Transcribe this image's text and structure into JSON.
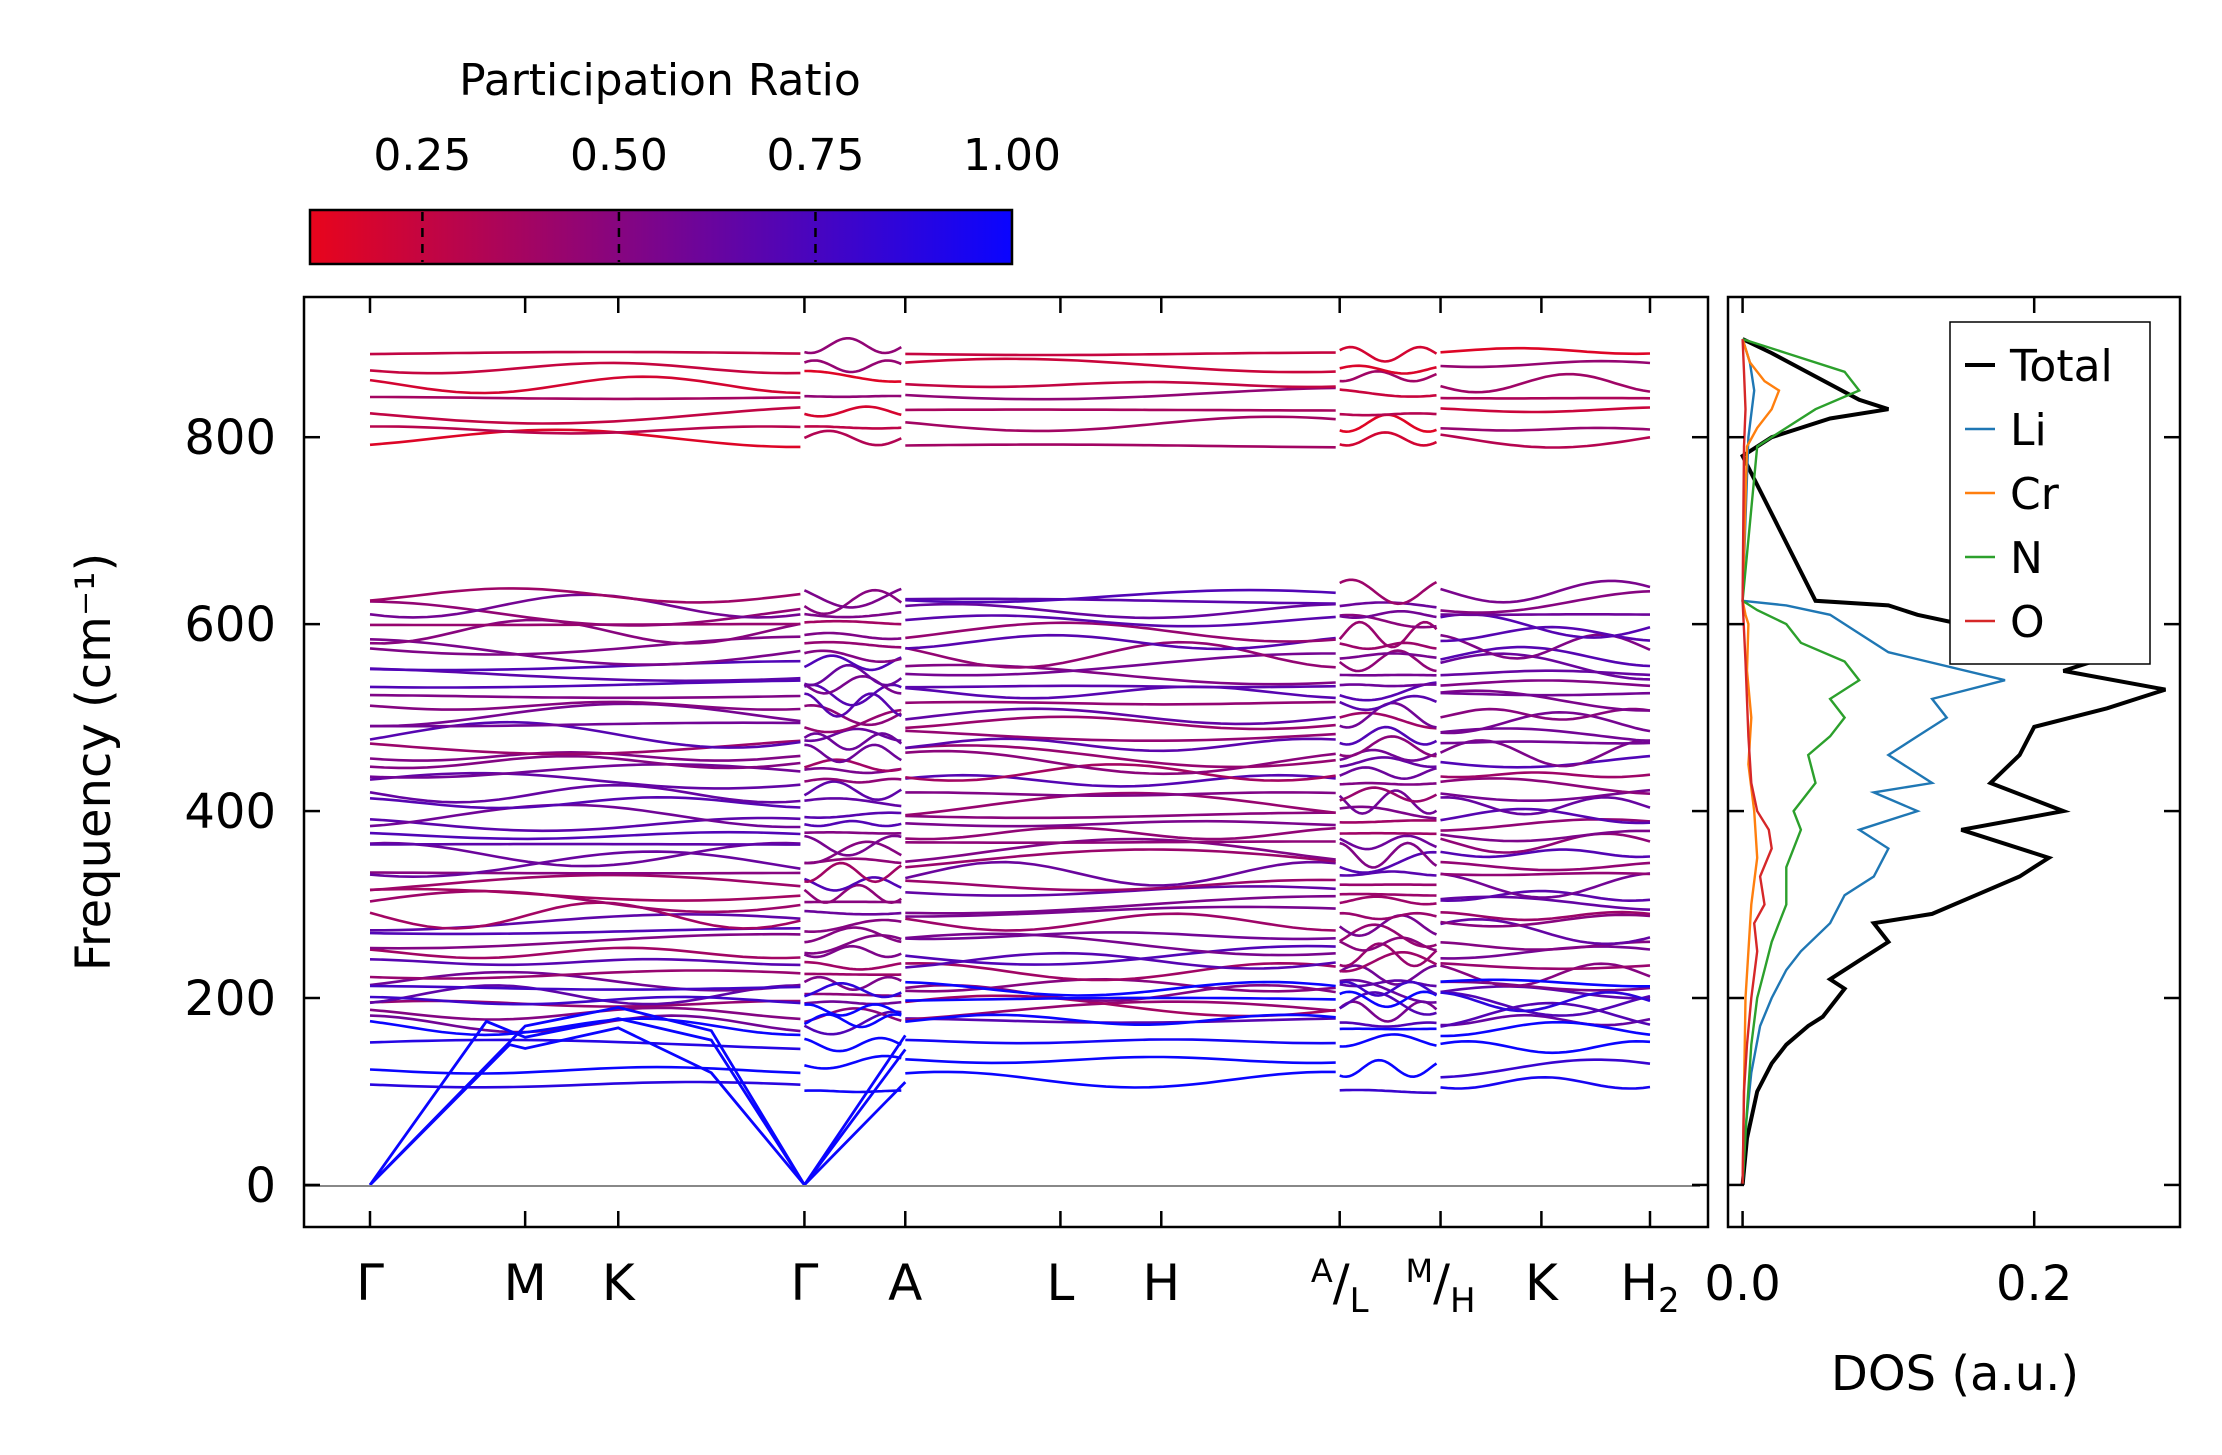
{
  "colors": {
    "colormap_low": "#e8051c",
    "colormap_high": "#0a05ff",
    "total": "#000000",
    "li": "#1f77b4",
    "cr": "#ff7f0e",
    "n": "#2ca02c",
    "o": "#d62728",
    "zero_line": "#888888"
  },
  "chart_data": [
    {
      "type": "line",
      "name": "phonon-band-structure",
      "title": "",
      "ylabel": "Frequency (cm⁻¹)",
      "ylim": [
        -45,
        950
      ],
      "yticks": [
        0,
        200,
        400,
        600,
        800
      ],
      "kpath_labels": [
        {
          "text": "Γ",
          "sup": "",
          "sub": ""
        },
        {
          "text": "M",
          "sup": "",
          "sub": ""
        },
        {
          "text": "K",
          "sup": "",
          "sub": ""
        },
        {
          "text": "Γ",
          "sup": "",
          "sub": ""
        },
        {
          "text": "A",
          "sup": "",
          "sub": ""
        },
        {
          "text": "L",
          "sup": "",
          "sub": ""
        },
        {
          "text": "H",
          "sup": "",
          "sub": ""
        },
        {
          "text": "/",
          "sup": "A",
          "sub": "L"
        },
        {
          "text": "/",
          "sup": "M",
          "sub": "H"
        },
        {
          "text": "K",
          "sup": "",
          "sub": ""
        },
        {
          "text": "H",
          "sup": "",
          "sub": "2"
        }
      ],
      "kpath_positions": [
        0,
        1.0,
        1.6,
        2.8,
        3.45,
        4.45,
        5.1,
        6.25,
        6.9,
        7.55,
        8.25
      ],
      "segments": [
        [
          0,
          2.8
        ],
        [
          2.8,
          3.45
        ],
        [
          3.45,
          6.25
        ],
        [
          6.25,
          6.9
        ],
        [
          6.9,
          8.25
        ]
      ],
      "acoustic_branches": [
        {
          "name": "acoustic-1",
          "points": [
            [
              0,
              0
            ],
            [
              0.75,
              175
            ],
            [
              1.0,
              158
            ],
            [
              1.6,
              178
            ],
            [
              2.2,
              155
            ],
            [
              2.8,
              0
            ]
          ]
        },
        {
          "name": "acoustic-2",
          "points": [
            [
              0,
              0
            ],
            [
              0.9,
              150
            ],
            [
              1.0,
              146
            ],
            [
              1.6,
              168
            ],
            [
              2.2,
              120
            ],
            [
              2.8,
              0
            ]
          ]
        },
        {
          "name": "acoustic-3",
          "points": [
            [
              0,
              0
            ],
            [
              1.0,
              170
            ],
            [
              1.6,
              190
            ],
            [
              2.2,
              165
            ],
            [
              2.8,
              0
            ]
          ]
        },
        {
          "name": "acoustic-a-1",
          "points": [
            [
              2.8,
              0
            ],
            [
              3.45,
              160
            ]
          ]
        },
        {
          "name": "acoustic-a-2",
          "points": [
            [
              2.8,
              0
            ],
            [
              3.45,
              145
            ]
          ]
        },
        {
          "name": "acoustic-a-3",
          "points": [
            [
              2.8,
              0
            ],
            [
              3.45,
              110
            ]
          ]
        }
      ],
      "colorbar": {
        "label": "Participation Ratio",
        "ticks": [
          "0.25",
          "0.50",
          "0.75",
          "1.00"
        ],
        "tick_values": [
          0.25,
          0.5,
          0.75,
          1.0
        ],
        "range": [
          0.107,
          1.0
        ]
      },
      "band_groups": [
        {
          "name": "high-frequency",
          "min": 790,
          "max": 905,
          "participation": 0.3
        },
        {
          "name": "optical",
          "min": 170,
          "max": 640,
          "participation": 0.55
        },
        {
          "name": "low-optical",
          "min": 100,
          "max": 230,
          "participation": 0.95
        }
      ]
    },
    {
      "type": "line",
      "name": "density-of-states",
      "xlabel": "DOS (a.u.)",
      "xlim": [
        -0.01,
        0.3
      ],
      "xticks": [
        0.0,
        0.2
      ],
      "xtick_labels": [
        "0.0",
        "0.2"
      ],
      "ylim": [
        -45,
        950
      ],
      "legend": {
        "placement": "top-right",
        "entries": [
          "Total",
          "Li",
          "Cr",
          "N",
          "O"
        ]
      },
      "series": [
        {
          "name": "Total",
          "x": [
            0,
            0.003,
            0.01,
            0.02,
            0.03,
            0.045,
            0.055,
            0.065,
            0.07,
            0.06,
            0.08,
            0.1,
            0.09,
            0.13,
            0.16,
            0.19,
            0.21,
            0.15,
            0.22,
            0.17,
            0.19,
            0.2,
            0.25,
            0.29,
            0.22,
            0.26,
            0.18,
            0.12,
            0.1,
            0.05,
            0,
            0.02,
            0.06,
            0.1,
            0.08,
            0.02,
            0
          ],
          "y": [
            0,
            50,
            100,
            130,
            150,
            170,
            180,
            200,
            210,
            220,
            240,
            260,
            280,
            290,
            310,
            330,
            350,
            380,
            400,
            430,
            460,
            490,
            510,
            530,
            550,
            570,
            590,
            610,
            620,
            625,
            780,
            800,
            820,
            830,
            840,
            890,
            905
          ]
        },
        {
          "name": "Li",
          "x": [
            0,
            0.002,
            0.006,
            0.012,
            0.02,
            0.03,
            0.04,
            0.06,
            0.07,
            0.09,
            0.1,
            0.08,
            0.12,
            0.09,
            0.13,
            0.1,
            0.12,
            0.14,
            0.13,
            0.18,
            0.1,
            0.08,
            0.06,
            0.03,
            0,
            0.004,
            0.008,
            0.005,
            0
          ],
          "y": [
            0,
            60,
            120,
            170,
            200,
            230,
            250,
            280,
            310,
            330,
            360,
            380,
            400,
            420,
            430,
            460,
            480,
            500,
            520,
            540,
            570,
            590,
            610,
            620,
            625,
            800,
            850,
            880,
            905
          ]
        },
        {
          "name": "Cr",
          "x": [
            0,
            0.001,
            0.002,
            0.004,
            0.006,
            0.01,
            0.008,
            0.004,
            0.006,
            0.003,
            0.004,
            0.002,
            0,
            0.003,
            0.01,
            0.02,
            0.025,
            0.015,
            0.01,
            0.005,
            0
          ],
          "y": [
            0,
            100,
            200,
            250,
            300,
            350,
            400,
            450,
            500,
            550,
            600,
            610,
            625,
            790,
            810,
            830,
            850,
            860,
            870,
            880,
            905
          ]
        },
        {
          "name": "N",
          "x": [
            0,
            0.003,
            0.006,
            0.01,
            0.015,
            0.02,
            0.03,
            0.03,
            0.04,
            0.035,
            0.05,
            0.045,
            0.06,
            0.07,
            0.06,
            0.08,
            0.07,
            0.04,
            0.03,
            0.01,
            0,
            0.01,
            0.03,
            0.05,
            0.08,
            0.07,
            0.03,
            0
          ],
          "y": [
            0,
            80,
            150,
            200,
            230,
            260,
            300,
            340,
            380,
            400,
            430,
            460,
            480,
            500,
            520,
            540,
            560,
            580,
            600,
            615,
            625,
            790,
            810,
            830,
            850,
            870,
            890,
            905
          ]
        },
        {
          "name": "O",
          "x": [
            0,
            0.001,
            0.003,
            0.006,
            0.01,
            0.008,
            0.015,
            0.012,
            0.02,
            0.018,
            0.01,
            0.006,
            0.004,
            0.002,
            0,
            0.001,
            0.002,
            0.001,
            0
          ],
          "y": [
            0,
            100,
            150,
            200,
            250,
            280,
            300,
            330,
            360,
            380,
            400,
            430,
            480,
            560,
            625,
            790,
            830,
            870,
            905
          ]
        }
      ]
    }
  ]
}
